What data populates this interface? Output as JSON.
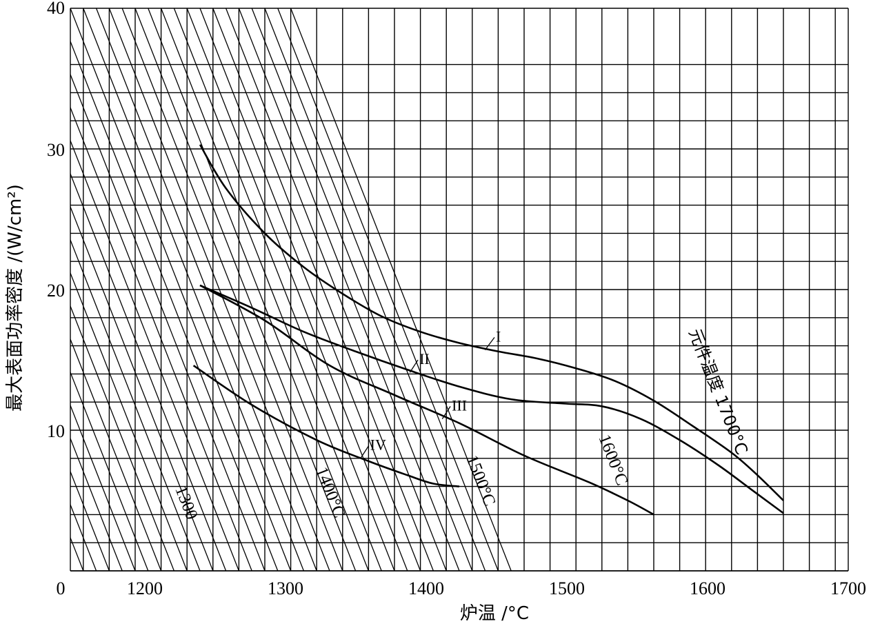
{
  "chart_data": {
    "type": "line",
    "xlabel": "炉温 /°C",
    "ylabel": "最大表面功率密度 /(W/cm²)",
    "xlim": [
      1100,
      1700
    ],
    "ylim": [
      0,
      40
    ],
    "x_ticks": [
      "0",
      "1200",
      "1300",
      "1400",
      "1500",
      "1600",
      "1700"
    ],
    "y_ticks": [
      "40",
      "30",
      "20",
      "10"
    ],
    "grid": true,
    "series": [
      {
        "name": "I",
        "x": [
          1200,
          1220,
          1250,
          1280,
          1310,
          1340,
          1370,
          1400,
          1430,
          1460,
          1490,
          1520,
          1550,
          1580,
          1610,
          1630,
          1650
        ],
        "y": [
          30.3,
          27.2,
          24.0,
          21.6,
          19.7,
          18.1,
          17.0,
          16.2,
          15.6,
          15.1,
          14.4,
          13.5,
          12.1,
          10.3,
          8.4,
          6.8,
          5.0
        ]
      },
      {
        "name": "II",
        "x": [
          1200,
          1240,
          1280,
          1320,
          1360,
          1400,
          1440,
          1480,
          1510,
          1540,
          1570,
          1600,
          1625,
          1650
        ],
        "y": [
          20.3,
          18.7,
          17.0,
          15.6,
          14.3,
          13.1,
          12.2,
          11.9,
          11.7,
          10.8,
          9.3,
          7.5,
          5.8,
          4.1
        ]
      },
      {
        "name": "III",
        "x": [
          1200,
          1250,
          1300,
          1350,
          1400,
          1450,
          1500,
          1530,
          1550
        ],
        "y": [
          20.3,
          17.8,
          14.6,
          12.5,
          10.5,
          8.2,
          6.3,
          5.0,
          4.0
        ]
      },
      {
        "name": "IV",
        "x": [
          1195,
          1240,
          1290,
          1330,
          1360,
          1380,
          1400
        ],
        "y": [
          14.6,
          11.8,
          9.3,
          7.8,
          6.8,
          6.2,
          6.0
        ]
      }
    ],
    "isolines": [
      {
        "label": "1300",
        "x0": 1160,
        "x1": 1330
      },
      {
        "label": "1400°C",
        "x0": 1260,
        "x1": 1430
      },
      {
        "label": "1500°C",
        "x0": 1360,
        "x1": 1530
      },
      {
        "label": "1600°C",
        "x0": 1460,
        "x1": 1630
      },
      {
        "label": "元件温度 1700°C",
        "x0": 1560,
        "x1": 1730
      }
    ]
  }
}
